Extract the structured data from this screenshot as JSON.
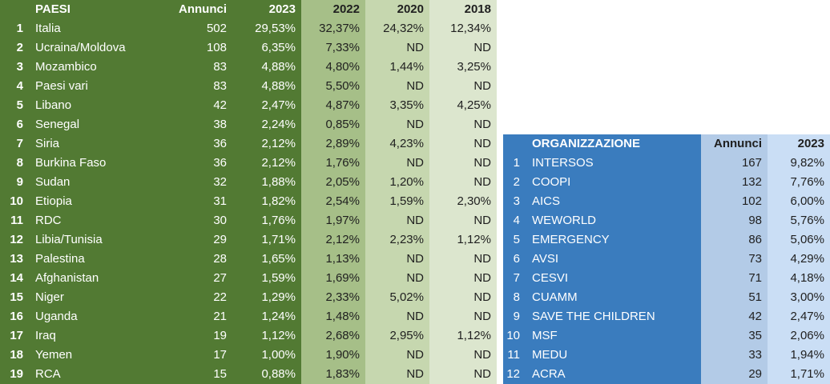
{
  "colors": {
    "green_dark": "#527a33",
    "green_2022": "#a6bf88",
    "green_2020": "#c6d7af",
    "green_2018": "#dce6ce",
    "blue_dark": "#3a7cbe",
    "blue_annunci": "#b3cbe7",
    "blue_2023": "#cadef5",
    "text_light": "#ffffff",
    "text_dark": "#1f1f1f"
  },
  "paesi_table": {
    "headers": {
      "paesi": "PAESI",
      "annunci": "Annunci",
      "y2023": "2023",
      "y2022": "2022",
      "y2020": "2020",
      "y2018": "2018"
    },
    "rows": [
      {
        "rank": "1",
        "country": "Italia",
        "annunci": "502",
        "y2023": "29,53%",
        "y2022": "32,37%",
        "y2020": "24,32%",
        "y2018": "12,34%"
      },
      {
        "rank": "2",
        "country": "Ucraina/Moldova",
        "annunci": "108",
        "y2023": "6,35%",
        "y2022": "7,33%",
        "y2020": "ND",
        "y2018": "ND"
      },
      {
        "rank": "3",
        "country": "Mozambico",
        "annunci": "83",
        "y2023": "4,88%",
        "y2022": "4,80%",
        "y2020": "1,44%",
        "y2018": "3,25%"
      },
      {
        "rank": "4",
        "country": "Paesi vari",
        "annunci": "83",
        "y2023": "4,88%",
        "y2022": "5,50%",
        "y2020": "ND",
        "y2018": "ND"
      },
      {
        "rank": "5",
        "country": "Libano",
        "annunci": "42",
        "y2023": "2,47%",
        "y2022": "4,87%",
        "y2020": "3,35%",
        "y2018": "4,25%"
      },
      {
        "rank": "6",
        "country": "Senegal",
        "annunci": "38",
        "y2023": "2,24%",
        "y2022": "0,85%",
        "y2020": "ND",
        "y2018": "ND"
      },
      {
        "rank": "7",
        "country": "Siria",
        "annunci": "36",
        "y2023": "2,12%",
        "y2022": "2,89%",
        "y2020": "4,23%",
        "y2018": "ND"
      },
      {
        "rank": "8",
        "country": "Burkina Faso",
        "annunci": "36",
        "y2023": "2,12%",
        "y2022": "1,76%",
        "y2020": "ND",
        "y2018": "ND"
      },
      {
        "rank": "9",
        "country": "Sudan",
        "annunci": "32",
        "y2023": "1,88%",
        "y2022": "2,05%",
        "y2020": "1,20%",
        "y2018": "ND"
      },
      {
        "rank": "10",
        "country": "Etiopia",
        "annunci": "31",
        "y2023": "1,82%",
        "y2022": "2,54%",
        "y2020": "1,59%",
        "y2018": "2,30%"
      },
      {
        "rank": "11",
        "country": "RDC",
        "annunci": "30",
        "y2023": "1,76%",
        "y2022": "1,97%",
        "y2020": "ND",
        "y2018": "ND"
      },
      {
        "rank": "12",
        "country": "Libia/Tunisia",
        "annunci": "29",
        "y2023": "1,71%",
        "y2022": "2,12%",
        "y2020": "2,23%",
        "y2018": "1,12%"
      },
      {
        "rank": "13",
        "country": "Palestina",
        "annunci": "28",
        "y2023": "1,65%",
        "y2022": "1,13%",
        "y2020": "ND",
        "y2018": "ND"
      },
      {
        "rank": "14",
        "country": "Afghanistan",
        "annunci": "27",
        "y2023": "1,59%",
        "y2022": "1,69%",
        "y2020": "ND",
        "y2018": "ND"
      },
      {
        "rank": "15",
        "country": "Niger",
        "annunci": "22",
        "y2023": "1,29%",
        "y2022": "2,33%",
        "y2020": "5,02%",
        "y2018": "ND"
      },
      {
        "rank": "16",
        "country": "Uganda",
        "annunci": "21",
        "y2023": "1,24%",
        "y2022": "1,48%",
        "y2020": "ND",
        "y2018": "ND"
      },
      {
        "rank": "17",
        "country": "Iraq",
        "annunci": "19",
        "y2023": "1,12%",
        "y2022": "2,68%",
        "y2020": "2,95%",
        "y2018": "1,12%"
      },
      {
        "rank": "18",
        "country": "Yemen",
        "annunci": "17",
        "y2023": "1,00%",
        "y2022": "1,90%",
        "y2020": "ND",
        "y2018": "ND"
      },
      {
        "rank": "19",
        "country": "RCA",
        "annunci": "15",
        "y2023": "0,88%",
        "y2022": "1,83%",
        "y2020": "ND",
        "y2018": "ND"
      }
    ]
  },
  "org_table": {
    "headers": {
      "organizzazione": "ORGANIZZAZIONE",
      "annunci": "Annunci",
      "y2023": "2023"
    },
    "rows": [
      {
        "rank": "1",
        "name": "INTERSOS",
        "annunci": "167",
        "y2023": "9,82%"
      },
      {
        "rank": "2",
        "name": "COOPI",
        "annunci": "132",
        "y2023": "7,76%"
      },
      {
        "rank": "3",
        "name": "AICS",
        "annunci": "102",
        "y2023": "6,00%"
      },
      {
        "rank": "4",
        "name": "WEWORLD",
        "annunci": "98",
        "y2023": "5,76%"
      },
      {
        "rank": "5",
        "name": "EMERGENCY",
        "annunci": "86",
        "y2023": "5,06%"
      },
      {
        "rank": "6",
        "name": "AVSI",
        "annunci": "73",
        "y2023": "4,29%"
      },
      {
        "rank": "7",
        "name": "CESVI",
        "annunci": "71",
        "y2023": "4,18%"
      },
      {
        "rank": "8",
        "name": "CUAMM",
        "annunci": "51",
        "y2023": "3,00%"
      },
      {
        "rank": "9",
        "name": "SAVE THE CHILDREN",
        "annunci": "42",
        "y2023": "2,47%"
      },
      {
        "rank": "10",
        "name": "MSF",
        "annunci": "35",
        "y2023": "2,06%"
      },
      {
        "rank": "11",
        "name": "MEDU",
        "annunci": "33",
        "y2023": "1,94%"
      },
      {
        "rank": "12",
        "name": "ACRA",
        "annunci": "29",
        "y2023": "1,71%"
      }
    ]
  }
}
